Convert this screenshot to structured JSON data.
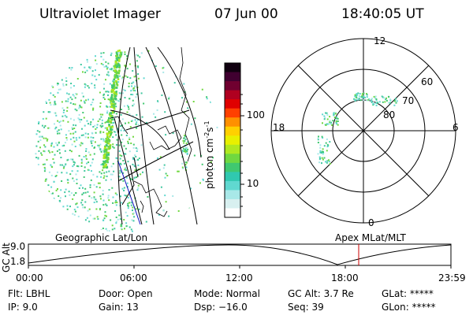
{
  "header": {
    "instrument": "Ultraviolet Imager",
    "date": "07 Jun 00",
    "time": "18:40:05 UT"
  },
  "colorbar": {
    "unit_label": "photon cm",
    "unit_sup1": "-2",
    "unit_mid": "s",
    "unit_sup2": "-1",
    "ticks": [
      "100",
      "10"
    ],
    "colors": [
      "#ffffff",
      "#d8f0f0",
      "#a8e8e8",
      "#60d8d0",
      "#30c8b0",
      "#40c870",
      "#70d840",
      "#b0e820",
      "#e8f000",
      "#ffd000",
      "#ff9000",
      "#ff4000",
      "#e00000",
      "#b00020",
      "#700030",
      "#400030",
      "#100010"
    ]
  },
  "map": {
    "label_left": "Geographic Lat/Lon",
    "label_right": "Apex MLat/MLT",
    "dot_colors": [
      "#40c8a0",
      "#60d8d0",
      "#70d840",
      "#40c870",
      "#a8e8e8"
    ],
    "band_colors": [
      "#70d840",
      "#b0e820",
      "#40c870"
    ]
  },
  "polar": {
    "mlt_labels": {
      "top": "12",
      "bottom": "0",
      "left": "18",
      "right": "6"
    },
    "lat_labels": [
      "60",
      "70",
      "80"
    ]
  },
  "altplot": {
    "ylabel": "GC Alt",
    "yticks": [
      "9.0",
      "1.8"
    ],
    "xticks": [
      "00:00",
      "06:00",
      "12:00",
      "18:00",
      "23:59"
    ],
    "marker_color": "#cc0000"
  },
  "info": {
    "row1": [
      {
        "key": "Flt:",
        "val": "LBHL"
      },
      {
        "key": "Door:",
        "val": "Open"
      },
      {
        "key": "Mode:",
        "val": "Normal"
      },
      {
        "key": "GC Alt:",
        "val": "3.7 Re"
      },
      {
        "key": "GLat:",
        "val": "*****"
      }
    ],
    "row2": [
      {
        "key": "IP:",
        "val": "9.0"
      },
      {
        "key": "Gain:",
        "val": "13"
      },
      {
        "key": "Dsp:",
        "val": "−16.0"
      },
      {
        "key": "Seq:",
        "val": "39"
      },
      {
        "key": "GLon:",
        "val": "*****"
      }
    ]
  }
}
